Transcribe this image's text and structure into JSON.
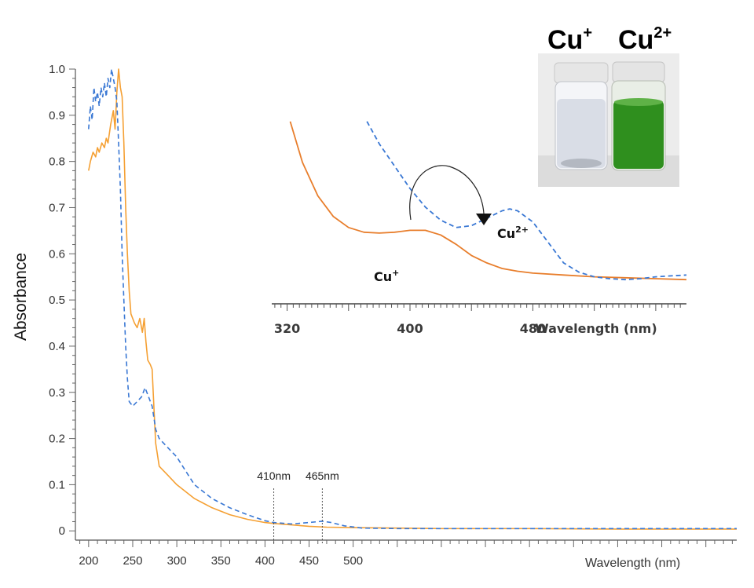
{
  "chart_data": {
    "type": "line",
    "main": {
      "ylabel": "Absorbance",
      "xlabel": "Wavelength (nm)",
      "xlim": [
        185,
        935
      ],
      "ylim": [
        -0.02,
        1.0
      ],
      "xticks": [
        200,
        250,
        300,
        350,
        400,
        450,
        500
      ],
      "yticks": [
        0,
        0.1,
        0.2,
        0.3,
        0.4,
        0.5,
        0.6,
        0.7,
        0.8,
        0.9,
        1.0
      ],
      "ytick_labels": [
        "0",
        "0.1",
        "0.2",
        "0.3",
        "0.4",
        "0.5",
        "0.6",
        "0.7",
        "0.8",
        "0.9",
        "1.0"
      ],
      "series": [
        {
          "color": "#f5a033",
          "style": "solid",
          "points": [
            [
              200,
              0.78
            ],
            [
              202,
              0.8
            ],
            [
              205,
              0.82
            ],
            [
              208,
              0.81
            ],
            [
              210,
              0.83
            ],
            [
              212,
              0.82
            ],
            [
              215,
              0.84
            ],
            [
              218,
              0.83
            ],
            [
              220,
              0.85
            ],
            [
              222,
              0.84
            ],
            [
              225,
              0.88
            ],
            [
              228,
              0.91
            ],
            [
              230,
              0.87
            ],
            [
              232,
              0.95
            ],
            [
              234,
              1.0
            ],
            [
              236,
              0.96
            ],
            [
              238,
              0.94
            ],
            [
              240,
              0.84
            ],
            [
              242,
              0.7
            ],
            [
              244,
              0.6
            ],
            [
              246,
              0.52
            ],
            [
              248,
              0.47
            ],
            [
              252,
              0.45
            ],
            [
              255,
              0.44
            ],
            [
              258,
              0.46
            ],
            [
              261,
              0.43
            ],
            [
              263,
              0.46
            ],
            [
              265,
              0.41
            ],
            [
              267,
              0.37
            ],
            [
              270,
              0.36
            ],
            [
              272,
              0.35
            ],
            [
              274,
              0.27
            ],
            [
              276,
              0.19
            ],
            [
              280,
              0.14
            ],
            [
              290,
              0.12
            ],
            [
              300,
              0.1
            ],
            [
              320,
              0.07
            ],
            [
              340,
              0.05
            ],
            [
              360,
              0.035
            ],
            [
              380,
              0.025
            ],
            [
              400,
              0.018
            ],
            [
              410,
              0.016
            ],
            [
              430,
              0.013
            ],
            [
              450,
              0.01
            ],
            [
              470,
              0.008
            ],
            [
              500,
              0.007
            ],
            [
              550,
              0.006
            ],
            [
              600,
              0.005
            ],
            [
              700,
              0.005
            ],
            [
              800,
              0.004
            ],
            [
              935,
              0.004
            ]
          ]
        },
        {
          "color": "#3a78d4",
          "style": "dashed",
          "points": [
            [
              200,
              0.87
            ],
            [
              202,
              0.92
            ],
            [
              204,
              0.89
            ],
            [
              206,
              0.96
            ],
            [
              208,
              0.93
            ],
            [
              210,
              0.95
            ],
            [
              212,
              0.92
            ],
            [
              214,
              0.96
            ],
            [
              216,
              0.94
            ],
            [
              218,
              0.97
            ],
            [
              220,
              0.94
            ],
            [
              222,
              0.98
            ],
            [
              224,
              0.96
            ],
            [
              226,
              1.0
            ],
            [
              228,
              0.98
            ],
            [
              230,
              0.96
            ],
            [
              232,
              0.93
            ],
            [
              234,
              0.84
            ],
            [
              236,
              0.74
            ],
            [
              238,
              0.6
            ],
            [
              240,
              0.5
            ],
            [
              242,
              0.4
            ],
            [
              244,
              0.33
            ],
            [
              246,
              0.28
            ],
            [
              250,
              0.27
            ],
            [
              255,
              0.28
            ],
            [
              260,
              0.29
            ],
            [
              264,
              0.31
            ],
            [
              268,
              0.29
            ],
            [
              272,
              0.27
            ],
            [
              276,
              0.22
            ],
            [
              280,
              0.2
            ],
            [
              290,
              0.18
            ],
            [
              300,
              0.16
            ],
            [
              310,
              0.13
            ],
            [
              320,
              0.1
            ],
            [
              340,
              0.07
            ],
            [
              360,
              0.05
            ],
            [
              380,
              0.035
            ],
            [
              400,
              0.022
            ],
            [
              410,
              0.018
            ],
            [
              430,
              0.015
            ],
            [
              450,
              0.018
            ],
            [
              460,
              0.02
            ],
            [
              465,
              0.021
            ],
            [
              475,
              0.018
            ],
            [
              490,
              0.011
            ],
            [
              510,
              0.006
            ],
            [
              550,
              0.005
            ],
            [
              600,
              0.005
            ],
            [
              700,
              0.005
            ],
            [
              800,
              0.005
            ],
            [
              935,
              0.005
            ]
          ]
        }
      ],
      "markers": [
        {
          "x": 410,
          "label": "410nm"
        },
        {
          "x": 465,
          "label": "465nm"
        }
      ]
    },
    "inset": {
      "xlabel": "Wavelength (nm)",
      "xlim": [
        310,
        580
      ],
      "ylim": [
        0,
        1
      ],
      "xticks": [
        320,
        400,
        480
      ],
      "series": [
        {
          "name": "Cu+",
          "color": "#e87e2c",
          "style": "solid",
          "points": [
            [
              322,
              0.98
            ],
            [
              330,
              0.76
            ],
            [
              340,
              0.58
            ],
            [
              350,
              0.47
            ],
            [
              360,
              0.41
            ],
            [
              370,
              0.385
            ],
            [
              380,
              0.38
            ],
            [
              390,
              0.385
            ],
            [
              400,
              0.395
            ],
            [
              410,
              0.395
            ],
            [
              420,
              0.37
            ],
            [
              430,
              0.32
            ],
            [
              440,
              0.26
            ],
            [
              450,
              0.22
            ],
            [
              460,
              0.19
            ],
            [
              470,
              0.175
            ],
            [
              480,
              0.165
            ],
            [
              500,
              0.155
            ],
            [
              520,
              0.145
            ],
            [
              540,
              0.14
            ],
            [
              560,
              0.135
            ],
            [
              580,
              0.13
            ]
          ]
        },
        {
          "name": "Cu2+",
          "color": "#3a78d4",
          "style": "dashed",
          "points": [
            [
              372,
              0.98
            ],
            [
              380,
              0.86
            ],
            [
              390,
              0.74
            ],
            [
              400,
              0.62
            ],
            [
              410,
              0.52
            ],
            [
              420,
              0.45
            ],
            [
              430,
              0.41
            ],
            [
              440,
              0.42
            ],
            [
              450,
              0.46
            ],
            [
              460,
              0.5
            ],
            [
              465,
              0.51
            ],
            [
              470,
              0.5
            ],
            [
              480,
              0.44
            ],
            [
              490,
              0.33
            ],
            [
              500,
              0.22
            ],
            [
              510,
              0.17
            ],
            [
              520,
              0.145
            ],
            [
              530,
              0.135
            ],
            [
              540,
              0.13
            ],
            [
              550,
              0.135
            ],
            [
              560,
              0.145
            ],
            [
              570,
              0.15
            ],
            [
              580,
              0.155
            ]
          ]
        }
      ],
      "labels": {
        "cu1": "Cu",
        "cu1_charge": "+",
        "cu2": "Cu",
        "cu2_charge": "2+"
      }
    },
    "photo": {
      "left_label": "Cu",
      "left_charge": "+",
      "right_label": "Cu",
      "right_charge": "2+",
      "left_liquid_color": "#d9dde6",
      "right_liquid_color": "#2f8f1e"
    }
  }
}
